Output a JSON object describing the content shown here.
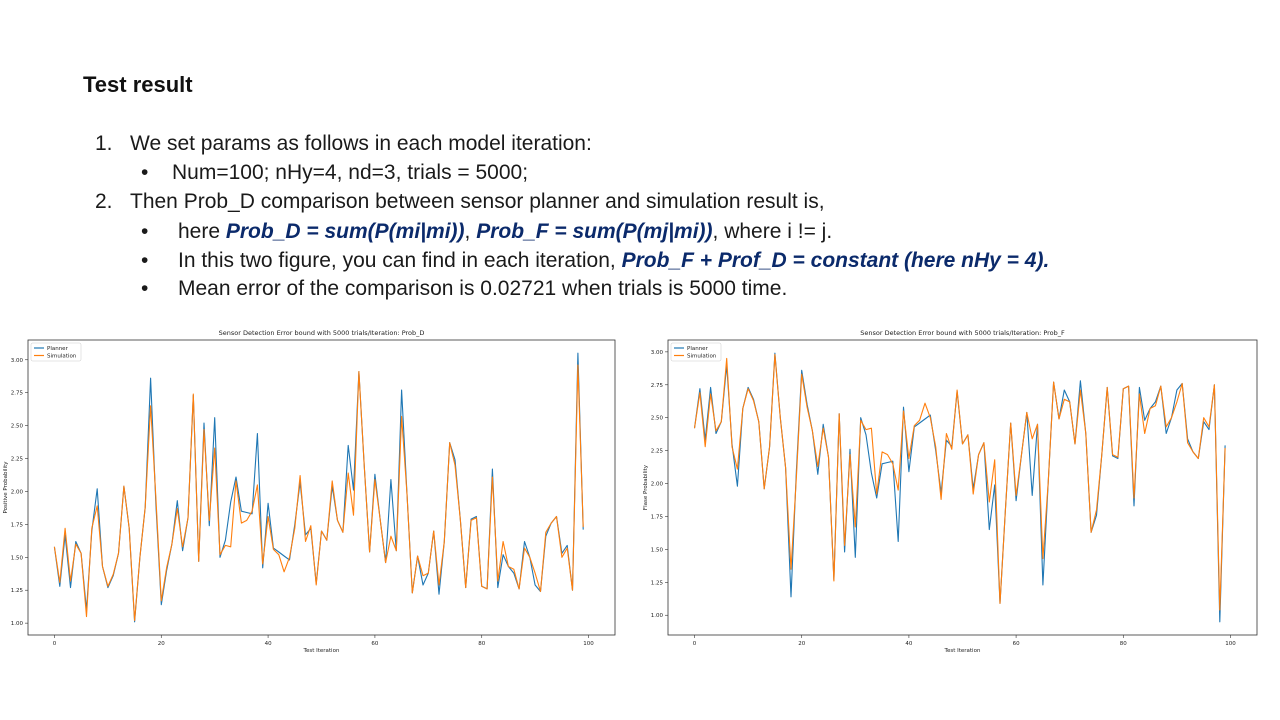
{
  "slide": {
    "title": "Test result",
    "items": [
      {
        "num": "1.",
        "text": "We set params as follows in each model iteration:"
      },
      {
        "bullet": "•",
        "text": "Num=100; nHy=4, nd=3, trials = 5000;"
      },
      {
        "num": "2.",
        "text": "Then Prob_D comparison between sensor planner and simulation result is,"
      },
      {
        "bullet": "•",
        "pre": "here ",
        "hl1": "Prob_D = sum(P(mi|mi))",
        "mid": ", ",
        "hl2": "Prob_F  = sum(P(mj|mi))",
        "post": ", where i != j."
      },
      {
        "bullet": "•",
        "pre": "In this two figure, you can find in each iteration, ",
        "hl1": "Prob_F + Prof_D = constant (here nHy = 4)."
      },
      {
        "bullet": "•",
        "text": "Mean error of the comparison is 0.02721 when trials is 5000 time."
      }
    ]
  },
  "colors": {
    "planner": "#1f77b4",
    "simulation": "#ff7f0e",
    "highlight": "#0b2a6b"
  },
  "chart_data": [
    {
      "type": "line",
      "title": "Sensor Detection Error bound with 5000 trials/Iteration: Prob_D",
      "xlabel": "Test Iteration",
      "ylabel": "Positive Probability",
      "xlim": [
        -4.95,
        104.95
      ],
      "ylim": [
        0.91,
        3.15
      ],
      "xticks": [
        0,
        20,
        40,
        60,
        80,
        100
      ],
      "yticks": [
        "1.00",
        "1.25",
        "1.50",
        "1.75",
        "2.00",
        "2.25",
        "2.50",
        "2.75",
        "3.00"
      ],
      "legend": "top-left",
      "series": [
        {
          "name": "Planner",
          "values": [
            1.58,
            1.28,
            1.67,
            1.27,
            1.62,
            1.53,
            1.1,
            1.7,
            2.02,
            1.43,
            1.27,
            1.36,
            1.53,
            2.04,
            1.72,
            1.01,
            1.5,
            1.88,
            2.86,
            1.9,
            1.14,
            1.4,
            1.6,
            1.93,
            1.55,
            1.8,
            2.73,
            1.47,
            2.52,
            1.74,
            2.56,
            1.5,
            1.63,
            1.92,
            2.11,
            1.85,
            1.84,
            1.83,
            2.44,
            1.42,
            1.91,
            1.57,
            1.54,
            1.51,
            1.48,
            1.75,
            2.07,
            1.67,
            1.72,
            1.3,
            1.7,
            1.63,
            2.04,
            1.78,
            1.69,
            2.35,
            2.01,
            2.91,
            2.2,
            1.54,
            2.13,
            1.78,
            1.46,
            2.09,
            1.55,
            2.77,
            1.98,
            1.23,
            1.51,
            1.29,
            1.38,
            1.7,
            1.22,
            1.62,
            2.37,
            2.24,
            1.78,
            1.27,
            1.79,
            1.81,
            1.28,
            1.26,
            2.17,
            1.27,
            1.52,
            1.43,
            1.38,
            1.26,
            1.62,
            1.5,
            1.29,
            1.24,
            1.66,
            1.76,
            1.81,
            1.53,
            1.59,
            1.25,
            3.05,
            1.71
          ]
        },
        {
          "name": "Simulation",
          "values": [
            1.58,
            1.31,
            1.72,
            1.32,
            1.6,
            1.53,
            1.05,
            1.72,
            1.89,
            1.43,
            1.28,
            1.37,
            1.53,
            2.04,
            1.72,
            1.02,
            1.5,
            1.88,
            2.65,
            1.95,
            1.17,
            1.42,
            1.6,
            1.87,
            1.58,
            1.8,
            2.74,
            1.47,
            2.47,
            1.78,
            2.33,
            1.52,
            1.59,
            1.58,
            2.08,
            1.76,
            1.78,
            1.85,
            2.05,
            1.45,
            1.81,
            1.56,
            1.52,
            1.39,
            1.5,
            1.72,
            2.12,
            1.62,
            1.74,
            1.29,
            1.7,
            1.63,
            2.08,
            1.78,
            1.69,
            2.14,
            1.82,
            2.91,
            2.2,
            1.54,
            2.09,
            1.78,
            1.46,
            1.66,
            1.55,
            2.57,
            1.98,
            1.23,
            1.51,
            1.36,
            1.38,
            1.7,
            1.29,
            1.62,
            2.37,
            2.2,
            1.78,
            1.27,
            1.78,
            1.8,
            1.28,
            1.26,
            2.11,
            1.32,
            1.62,
            1.43,
            1.41,
            1.26,
            1.57,
            1.5,
            1.38,
            1.24,
            1.69,
            1.76,
            1.81,
            1.5,
            1.57,
            1.25,
            2.96,
            1.73
          ]
        }
      ]
    },
    {
      "type": "line",
      "title": "Sensor Detection Error bound with 5000 trials/Iteration: Prob_F",
      "xlabel": "Test Iteration",
      "ylabel": "Flase Probability",
      "xlim": [
        -4.95,
        104.95
      ],
      "ylim": [
        0.85,
        3.09
      ],
      "xticks": [
        0,
        20,
        40,
        60,
        80,
        100
      ],
      "yticks": [
        "1.00",
        "1.25",
        "1.50",
        "1.75",
        "2.00",
        "2.25",
        "2.50",
        "2.75",
        "3.00"
      ],
      "legend": "top-left",
      "series": [
        {
          "name": "Planner",
          "values": [
            2.42,
            2.72,
            2.33,
            2.73,
            2.38,
            2.47,
            2.9,
            2.3,
            1.98,
            2.57,
            2.73,
            2.64,
            2.47,
            1.96,
            2.28,
            2.99,
            2.5,
            2.12,
            1.14,
            2.1,
            2.86,
            2.6,
            2.4,
            2.07,
            2.45,
            2.2,
            1.27,
            2.53,
            1.48,
            2.26,
            1.44,
            2.5,
            2.37,
            2.08,
            1.89,
            2.15,
            2.16,
            2.17,
            1.56,
            2.58,
            2.09,
            2.43,
            2.46,
            2.49,
            2.52,
            2.25,
            1.93,
            2.33,
            2.28,
            2.7,
            2.3,
            2.37,
            1.96,
            2.22,
            2.31,
            1.65,
            1.99,
            1.09,
            1.8,
            2.46,
            1.87,
            2.22,
            2.54,
            1.91,
            2.45,
            1.23,
            2.02,
            2.77,
            2.49,
            2.71,
            2.62,
            2.3,
            2.78,
            2.38,
            1.63,
            1.76,
            2.22,
            2.73,
            2.21,
            2.19,
            2.72,
            2.74,
            1.83,
            2.73,
            2.48,
            2.57,
            2.62,
            2.74,
            2.38,
            2.5,
            2.71,
            2.76,
            2.34,
            2.24,
            2.19,
            2.47,
            2.41,
            2.75,
            0.95,
            2.29
          ]
        },
        {
          "name": "Simulation",
          "values": [
            2.42,
            2.69,
            2.28,
            2.68,
            2.4,
            2.47,
            2.95,
            2.28,
            2.11,
            2.57,
            2.72,
            2.63,
            2.47,
            1.96,
            2.28,
            2.98,
            2.5,
            2.12,
            1.35,
            2.05,
            2.83,
            2.58,
            2.4,
            2.13,
            2.42,
            2.2,
            1.26,
            2.53,
            1.53,
            2.22,
            1.67,
            2.48,
            2.41,
            2.42,
            1.92,
            2.24,
            2.22,
            2.15,
            1.95,
            2.55,
            2.19,
            2.44,
            2.48,
            2.61,
            2.5,
            2.28,
            1.88,
            2.38,
            2.26,
            2.71,
            2.3,
            2.37,
            1.92,
            2.22,
            2.31,
            1.86,
            2.18,
            1.09,
            1.8,
            2.46,
            1.91,
            2.22,
            2.54,
            2.34,
            2.45,
            1.43,
            2.02,
            2.77,
            2.49,
            2.64,
            2.62,
            2.3,
            2.71,
            2.38,
            1.63,
            1.8,
            2.22,
            2.73,
            2.22,
            2.2,
            2.72,
            2.74,
            1.89,
            2.68,
            2.38,
            2.57,
            2.59,
            2.74,
            2.43,
            2.5,
            2.62,
            2.76,
            2.31,
            2.24,
            2.19,
            2.5,
            2.43,
            2.75,
            1.04,
            2.27
          ]
        }
      ]
    }
  ]
}
